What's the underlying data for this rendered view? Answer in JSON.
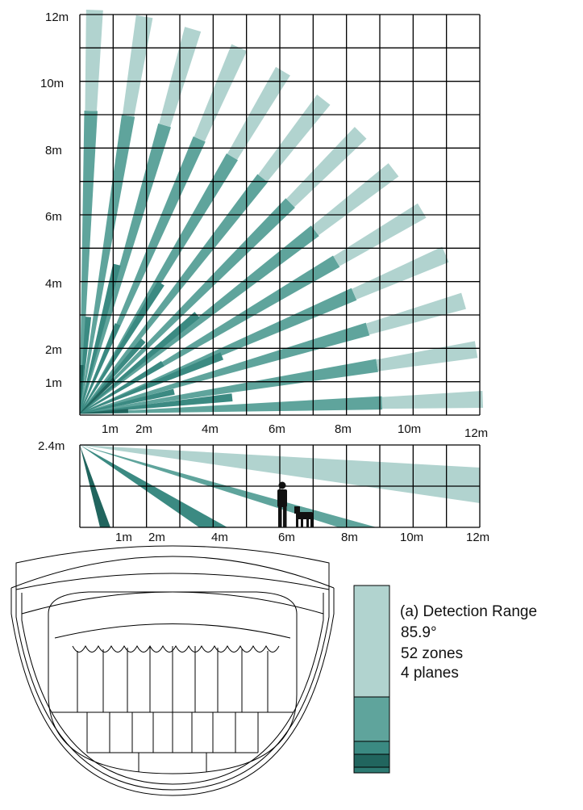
{
  "top_view": {
    "y_ticks": [
      "12m",
      "10m",
      "8m",
      "6m",
      "4m",
      "2m",
      "1m"
    ],
    "x_ticks": [
      "1m",
      "2m",
      "4m",
      "6m",
      "8m",
      "10m",
      "12m"
    ]
  },
  "side_view": {
    "height_label": "2.4m",
    "x_ticks": [
      "1m",
      "2m",
      "4m",
      "6m",
      "8m",
      "10m",
      "12m"
    ]
  },
  "legend": {
    "title": "(a) Detection Range",
    "angle": "85.9°",
    "zones": "52 zones",
    "planes": "4 planes"
  },
  "colors": {
    "far": "#b1d3cf",
    "mid": "#5fa49c",
    "near": "#3b8a82",
    "nearest": "#21655e",
    "grid": "#000000"
  }
}
